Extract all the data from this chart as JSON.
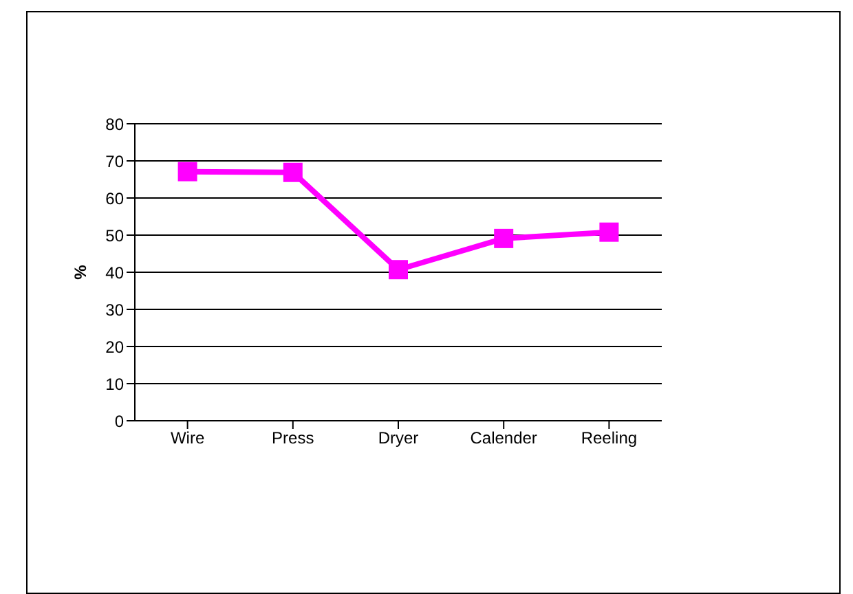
{
  "chart_data": {
    "type": "line",
    "ylabel": "%",
    "categories": [
      "Wire",
      "Press",
      "Dryer",
      "Calender",
      "Reeling"
    ],
    "series": [
      {
        "color": "#ff00ff",
        "values": [
          67.1,
          66.9,
          40.7,
          49.1,
          50.8
        ]
      }
    ],
    "ylim": [
      0,
      80
    ],
    "yticks": [
      0,
      10,
      20,
      30,
      40,
      50,
      60,
      70,
      80
    ],
    "grid": "y",
    "marker": "square",
    "line_style": "solid",
    "legend": false
  }
}
